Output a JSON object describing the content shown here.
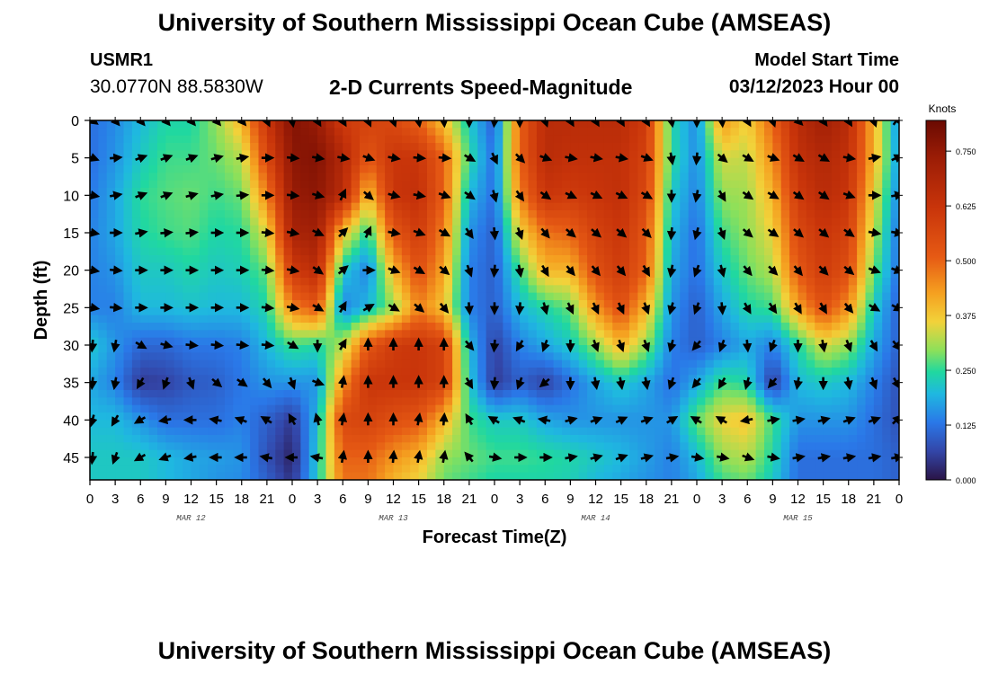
{
  "header": {
    "title": "University of Southern Mississippi Ocean Cube (AMSEAS)",
    "station_id": "USMR1",
    "coords": "30.0770N  88.5830W",
    "subtitle": "2-D Currents Speed-Magnitude",
    "start_label": "Model Start Time",
    "start_value": "03/12/2023 Hour 00"
  },
  "footer": {
    "title": "University of Southern Mississippi Ocean Cube (AMSEAS)"
  },
  "chart_data": {
    "type": "heatmap",
    "title": "2-D Currents Speed-Magnitude",
    "xlabel": "Forecast Time(Z)",
    "ylabel": "Depth (ft)",
    "x_tick_labels": [
      "0",
      "3",
      "6",
      "9",
      "12",
      "15",
      "18",
      "21",
      "0",
      "3",
      "6",
      "9",
      "12",
      "15",
      "18",
      "21",
      "0",
      "3",
      "6",
      "9",
      "12",
      "15",
      "18",
      "21",
      "0",
      "3",
      "6",
      "9",
      "12",
      "15",
      "18",
      "21",
      "0"
    ],
    "date_labels": [
      {
        "label": "MAR 12",
        "hour": 12
      },
      {
        "label": "MAR 13",
        "hour": 36
      },
      {
        "label": "MAR 14",
        "hour": 60
      },
      {
        "label": "MAR 15",
        "hour": 84
      }
    ],
    "x_range_hours": [
      0,
      96
    ],
    "y_ticks": [
      0,
      5,
      10,
      15,
      20,
      25,
      30,
      35,
      40,
      45
    ],
    "y_range_ft": [
      0,
      48
    ],
    "colorbar": {
      "unit": "Knots",
      "ticks": [
        "0.000",
        "0.125",
        "0.250",
        "0.375",
        "0.500",
        "0.625",
        "0.750"
      ],
      "range": [
        0,
        0.82
      ]
    },
    "speed_hours": [
      0,
      3,
      6,
      9,
      12,
      15,
      18,
      21,
      24,
      27,
      30,
      33,
      36,
      39,
      42,
      45,
      48,
      51,
      54,
      57,
      60,
      63,
      66,
      69,
      72,
      75,
      78,
      81,
      84,
      87,
      90,
      93,
      96
    ],
    "speed_depths_ft": [
      0,
      5,
      10,
      15,
      20,
      25,
      30,
      35,
      40,
      45,
      48
    ],
    "speed_knots": [
      [
        0.12,
        0.15,
        0.2,
        0.24,
        0.24,
        0.3,
        0.4,
        0.62,
        0.78,
        0.74,
        0.6,
        0.58,
        0.56,
        0.5,
        0.38,
        0.22,
        0.1,
        0.5,
        0.66,
        0.66,
        0.66,
        0.66,
        0.6,
        0.24,
        0.15,
        0.44,
        0.36,
        0.5,
        0.66,
        0.72,
        0.66,
        0.4,
        0.15
      ],
      [
        0.12,
        0.16,
        0.22,
        0.26,
        0.26,
        0.28,
        0.32,
        0.56,
        0.76,
        0.78,
        0.68,
        0.52,
        0.62,
        0.62,
        0.5,
        0.25,
        0.12,
        0.5,
        0.66,
        0.64,
        0.64,
        0.64,
        0.58,
        0.25,
        0.15,
        0.34,
        0.33,
        0.45,
        0.64,
        0.68,
        0.64,
        0.4,
        0.16
      ],
      [
        0.13,
        0.18,
        0.25,
        0.27,
        0.28,
        0.26,
        0.28,
        0.46,
        0.74,
        0.76,
        0.66,
        0.38,
        0.62,
        0.64,
        0.5,
        0.2,
        0.12,
        0.46,
        0.62,
        0.6,
        0.62,
        0.64,
        0.56,
        0.22,
        0.14,
        0.3,
        0.31,
        0.4,
        0.6,
        0.66,
        0.62,
        0.36,
        0.14
      ],
      [
        0.14,
        0.18,
        0.24,
        0.26,
        0.27,
        0.24,
        0.25,
        0.35,
        0.7,
        0.72,
        0.38,
        0.24,
        0.52,
        0.6,
        0.46,
        0.16,
        0.1,
        0.36,
        0.48,
        0.5,
        0.58,
        0.62,
        0.52,
        0.2,
        0.12,
        0.26,
        0.3,
        0.36,
        0.56,
        0.62,
        0.58,
        0.32,
        0.12
      ],
      [
        0.14,
        0.16,
        0.22,
        0.22,
        0.24,
        0.22,
        0.23,
        0.28,
        0.6,
        0.66,
        0.22,
        0.14,
        0.4,
        0.54,
        0.42,
        0.14,
        0.1,
        0.26,
        0.4,
        0.4,
        0.54,
        0.6,
        0.5,
        0.18,
        0.12,
        0.22,
        0.28,
        0.32,
        0.52,
        0.6,
        0.54,
        0.28,
        0.12
      ],
      [
        0.14,
        0.14,
        0.2,
        0.2,
        0.21,
        0.2,
        0.2,
        0.24,
        0.46,
        0.52,
        0.14,
        0.2,
        0.3,
        0.46,
        0.38,
        0.14,
        0.1,
        0.2,
        0.24,
        0.28,
        0.44,
        0.54,
        0.4,
        0.16,
        0.1,
        0.18,
        0.24,
        0.26,
        0.42,
        0.54,
        0.44,
        0.22,
        0.1
      ],
      [
        0.22,
        0.16,
        0.11,
        0.11,
        0.13,
        0.13,
        0.14,
        0.2,
        0.26,
        0.24,
        0.32,
        0.52,
        0.6,
        0.62,
        0.58,
        0.2,
        0.06,
        0.14,
        0.18,
        0.22,
        0.3,
        0.4,
        0.3,
        0.14,
        0.1,
        0.14,
        0.18,
        0.14,
        0.24,
        0.34,
        0.3,
        0.18,
        0.1
      ],
      [
        0.18,
        0.14,
        0.05,
        0.06,
        0.09,
        0.1,
        0.13,
        0.16,
        0.16,
        0.16,
        0.44,
        0.62,
        0.62,
        0.62,
        0.58,
        0.22,
        0.05,
        0.1,
        0.06,
        0.12,
        0.18,
        0.22,
        0.18,
        0.12,
        0.18,
        0.26,
        0.24,
        0.05,
        0.2,
        0.22,
        0.2,
        0.14,
        0.08
      ],
      [
        0.2,
        0.2,
        0.16,
        0.12,
        0.12,
        0.12,
        0.14,
        0.1,
        0.05,
        0.2,
        0.56,
        0.58,
        0.54,
        0.52,
        0.4,
        0.26,
        0.22,
        0.22,
        0.18,
        0.16,
        0.16,
        0.16,
        0.16,
        0.16,
        0.28,
        0.36,
        0.38,
        0.26,
        0.16,
        0.16,
        0.16,
        0.12,
        0.08
      ],
      [
        0.22,
        0.22,
        0.22,
        0.2,
        0.18,
        0.17,
        0.16,
        0.08,
        0.02,
        0.22,
        0.5,
        0.5,
        0.44,
        0.4,
        0.3,
        0.28,
        0.26,
        0.26,
        0.25,
        0.24,
        0.22,
        0.2,
        0.17,
        0.14,
        0.2,
        0.3,
        0.32,
        0.24,
        0.12,
        0.12,
        0.12,
        0.12,
        0.1
      ],
      [
        0.22,
        0.22,
        0.22,
        0.2,
        0.18,
        0.16,
        0.15,
        0.1,
        0.04,
        0.22,
        0.48,
        0.48,
        0.4,
        0.36,
        0.28,
        0.26,
        0.24,
        0.24,
        0.24,
        0.23,
        0.2,
        0.18,
        0.16,
        0.14,
        0.18,
        0.26,
        0.28,
        0.22,
        0.12,
        0.12,
        0.12,
        0.12,
        0.1
      ]
    ],
    "vector_hours": [
      0.3,
      3,
      6,
      9,
      12,
      15,
      18,
      21,
      24,
      27,
      30,
      33,
      36,
      39,
      42,
      45,
      48,
      51,
      54,
      57,
      60,
      63,
      66,
      69,
      72,
      75,
      78,
      81,
      84,
      87,
      90,
      93,
      95.7
    ],
    "vector_depths_ft": [
      0,
      5,
      10,
      15,
      20,
      25,
      30,
      35,
      40,
      45
    ],
    "vector_direction_deg": [
      [
        125,
        140,
        140,
        140,
        140,
        140,
        140,
        155,
        170,
        150,
        150,
        155,
        160,
        170,
        175,
        180,
        185,
        180,
        160,
        150,
        150,
        150,
        150,
        170,
        180,
        175,
        150,
        160,
        135,
        145,
        150,
        160,
        35
      ],
      [
        110,
        85,
        70,
        70,
        70,
        75,
        80,
        90,
        95,
        100,
        100,
        110,
        100,
        95,
        95,
        120,
        155,
        135,
        110,
        100,
        100,
        100,
        110,
        170,
        185,
        130,
        120,
        110,
        120,
        120,
        100,
        80,
        65
      ],
      [
        100,
        80,
        70,
        70,
        75,
        80,
        85,
        90,
        95,
        105,
        25,
        130,
        105,
        100,
        110,
        125,
        165,
        145,
        125,
        115,
        115,
        115,
        120,
        180,
        190,
        150,
        125,
        120,
        125,
        125,
        110,
        90,
        80
      ],
      [
        100,
        90,
        80,
        85,
        85,
        90,
        90,
        95,
        100,
        115,
        45,
        25,
        100,
        110,
        120,
        145,
        175,
        160,
        140,
        130,
        130,
        130,
        135,
        185,
        195,
        160,
        130,
        125,
        130,
        130,
        125,
        100,
        100
      ],
      [
        100,
        95,
        90,
        90,
        90,
        90,
        90,
        95,
        100,
        125,
        50,
        90,
        110,
        120,
        130,
        160,
        185,
        170,
        150,
        140,
        140,
        140,
        150,
        190,
        200,
        165,
        140,
        135,
        140,
        135,
        130,
        110,
        110
      ],
      [
        100,
        95,
        90,
        90,
        90,
        90,
        90,
        95,
        100,
        120,
        30,
        60,
        120,
        130,
        140,
        175,
        180,
        185,
        165,
        155,
        155,
        155,
        160,
        195,
        200,
        175,
        150,
        145,
        150,
        150,
        140,
        120,
        120
      ],
      [
        185,
        190,
        120,
        105,
        95,
        95,
        95,
        95,
        120,
        180,
        30,
        0,
        0,
        0,
        0,
        140,
        185,
        210,
        200,
        180,
        160,
        160,
        160,
        195,
        220,
        200,
        175,
        200,
        180,
        170,
        160,
        150,
        140
      ],
      [
        185,
        190,
        210,
        200,
        160,
        130,
        125,
        140,
        160,
        110,
        10,
        0,
        0,
        0,
        0,
        150,
        185,
        200,
        230,
        180,
        170,
        170,
        170,
        200,
        220,
        210,
        195,
        220,
        190,
        180,
        170,
        160,
        150
      ],
      [
        195,
        210,
        240,
        260,
        270,
        280,
        290,
        300,
        330,
        345,
        10,
        0,
        0,
        10,
        5,
        330,
        300,
        290,
        280,
        75,
        70,
        65,
        70,
        60,
        300,
        300,
        260,
        80,
        80,
        75,
        70,
        70,
        45
      ],
      [
        185,
        200,
        240,
        250,
        260,
        270,
        270,
        280,
        270,
        280,
        10,
        0,
        5,
        10,
        10,
        320,
        100,
        90,
        90,
        80,
        75,
        70,
        75,
        80,
        100,
        100,
        110,
        100,
        80,
        80,
        80,
        80,
        80
      ]
    ]
  }
}
